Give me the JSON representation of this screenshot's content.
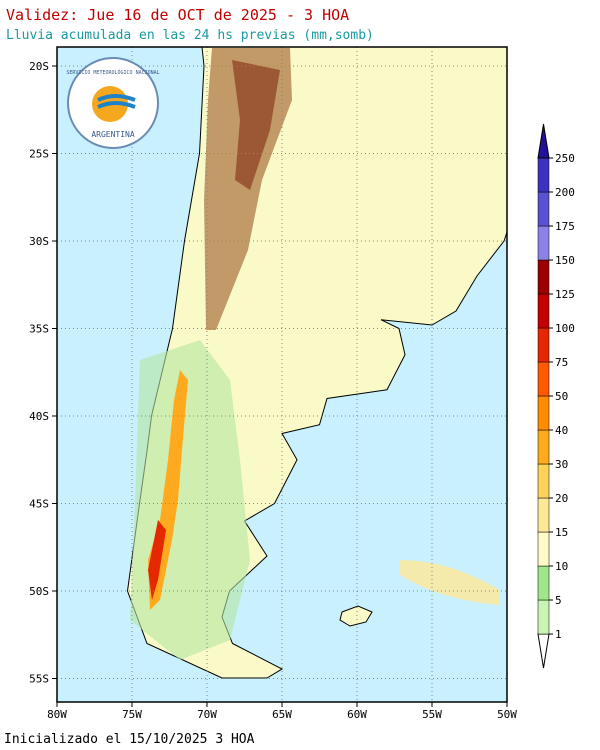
{
  "header": {
    "title": "Validez: Jue 16 de OCT de 2025 - 3 HOA",
    "subtitle": "Lluvia acumulada en las 24 hs previas (mm,somb)"
  },
  "logo": {
    "org": "SERVICIO METEOROLÓGICO NACIONAL",
    "country": "ARGENTINA"
  },
  "map": {
    "lat_labels": [
      "20S",
      "25S",
      "30S",
      "35S",
      "40S",
      "45S",
      "50S",
      "55S"
    ],
    "lon_labels": [
      "80W",
      "75W",
      "70W",
      "65W",
      "60W",
      "55W",
      "50W"
    ]
  },
  "legend": {
    "levels": [
      1,
      5,
      10,
      15,
      20,
      30,
      40,
      50,
      75,
      100,
      125,
      150,
      175,
      200,
      250
    ],
    "colors": [
      "#c8f5b4",
      "#a0e68c",
      "#fffac8",
      "#ffe896",
      "#ffd25a",
      "#ffaa1e",
      "#ff8c00",
      "#ff5a00",
      "#e62800",
      "#c40000",
      "#9a0000",
      "#8c82e6",
      "#5a50d2",
      "#3c32c0",
      "#23109a"
    ]
  },
  "footer": "Inicializado el 15/10/2025 3 HOA"
}
